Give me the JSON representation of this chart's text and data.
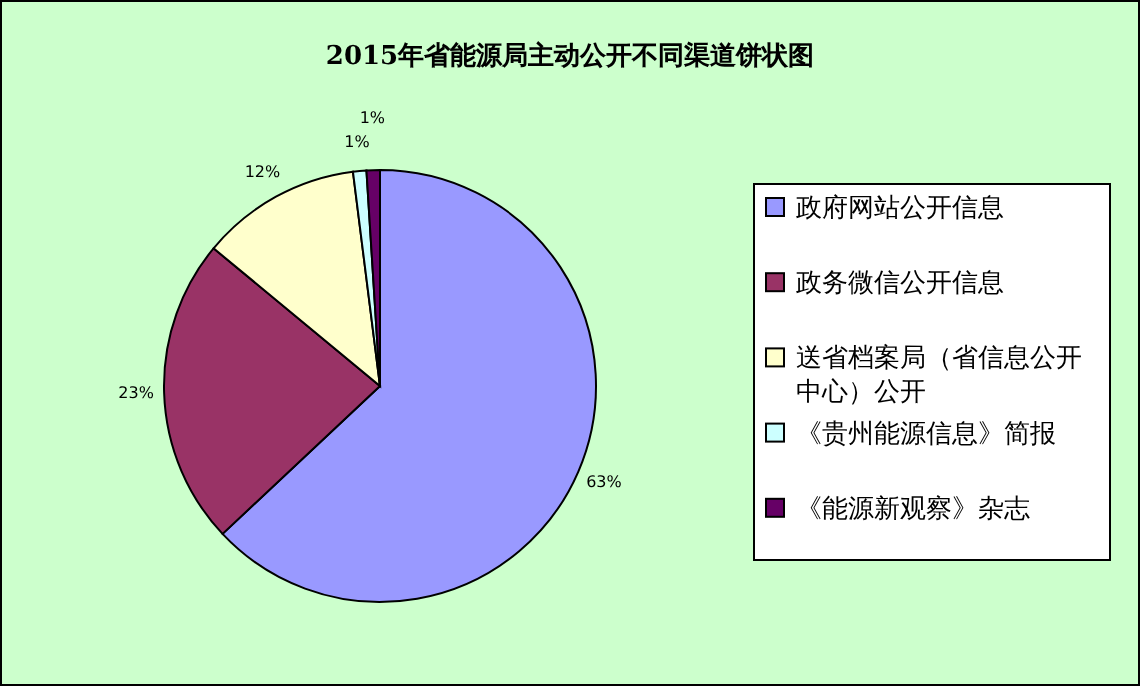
{
  "chart_data": {
    "type": "pie",
    "title": "2015年省能源局主动公开不同渠道饼状图",
    "categories": [
      "政府网站公开信息",
      "政务微信公开信息",
      "送省档案局（省信息公开中心）公开",
      "《贵州能源信息》简报",
      "《能源新观察》杂志"
    ],
    "values": [
      63,
      23,
      12,
      1,
      1
    ],
    "colors": [
      "#9999ff",
      "#993366",
      "#ffffcc",
      "#ccffff",
      "#660066"
    ],
    "value_labels": [
      "63%",
      "23%",
      "12%",
      "1%",
      "1%"
    ],
    "legend": "right"
  }
}
